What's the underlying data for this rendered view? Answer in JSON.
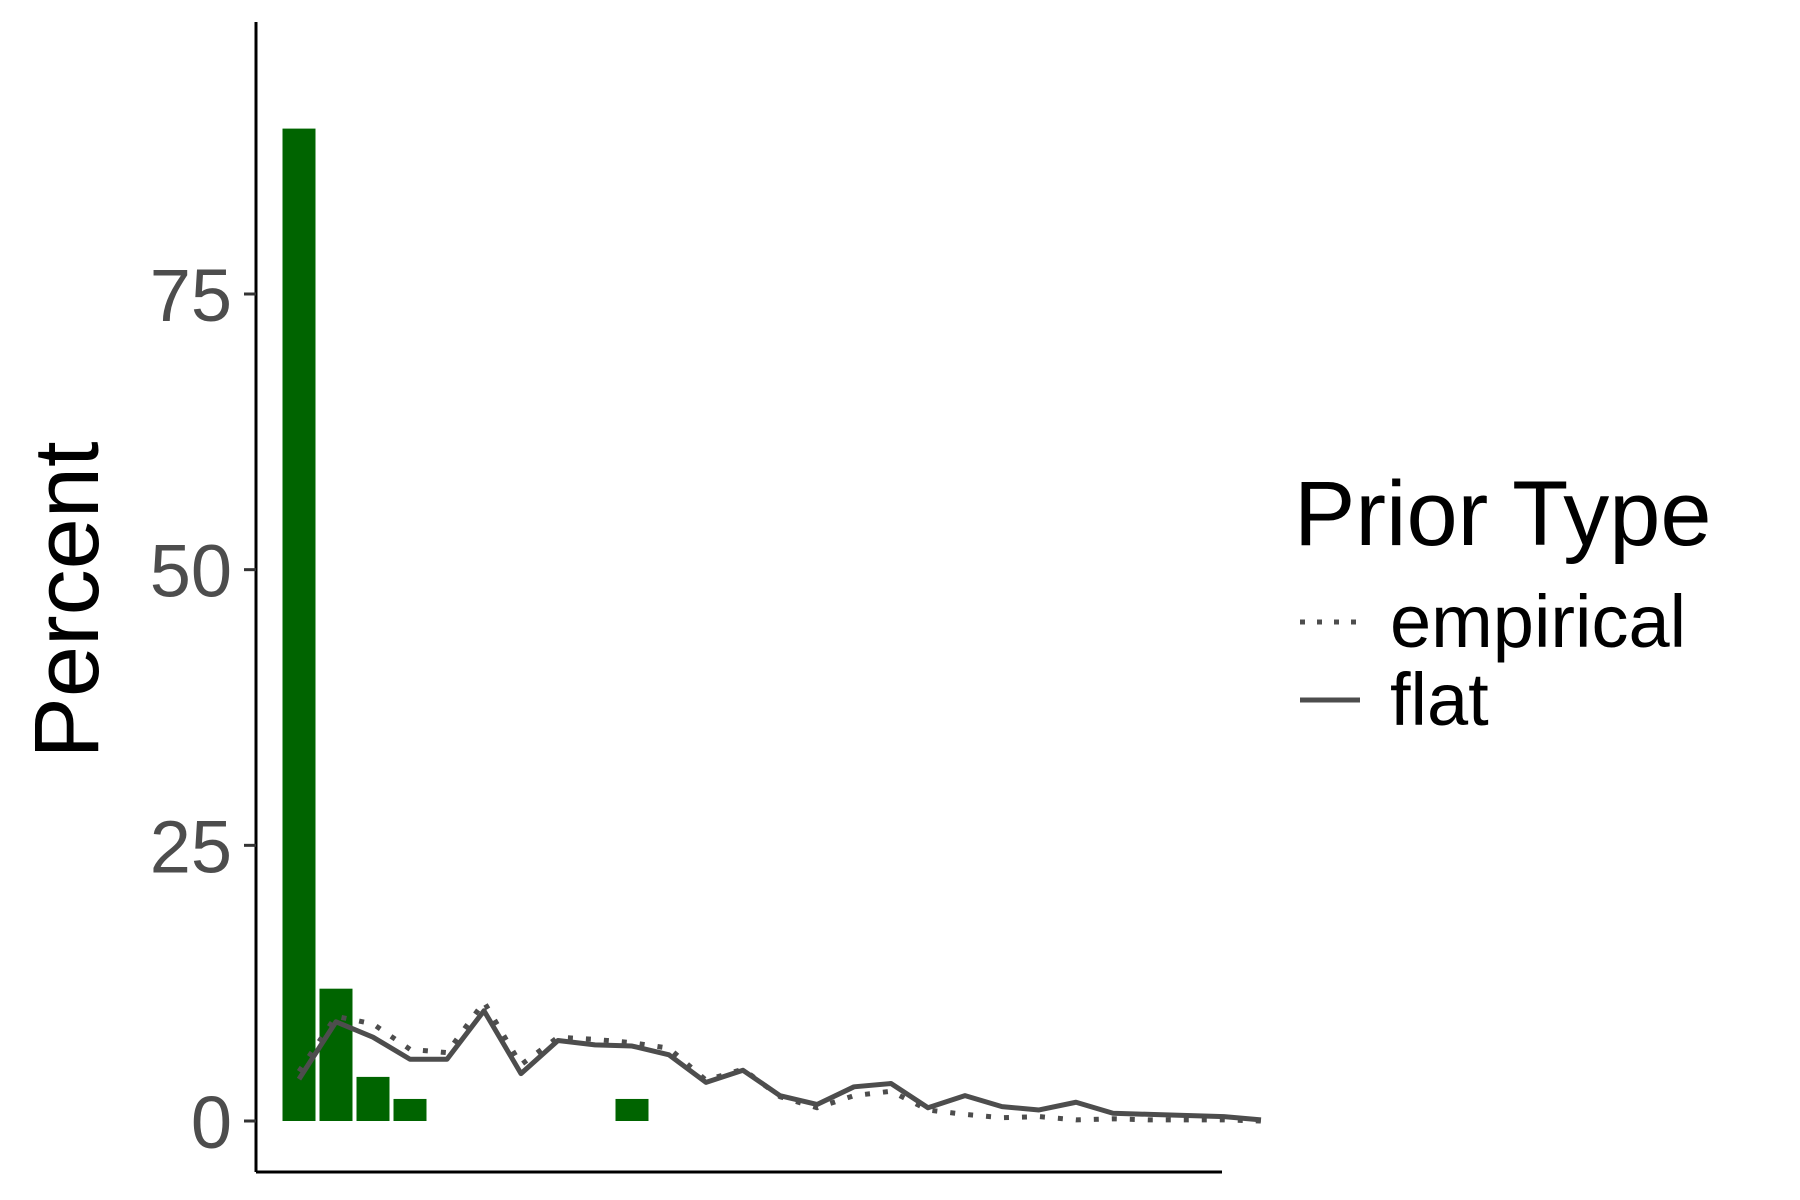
{
  "chart_data": {
    "type": "bar",
    "title": "",
    "xlabel": "",
    "ylabel": "Percent",
    "ylim": [
      -4.5,
      100
    ],
    "yticks": [
      0,
      25,
      50,
      75
    ],
    "grid": false,
    "legend": {
      "title": "Prior Type",
      "placement": "right",
      "entries": [
        {
          "label": "empirical",
          "linetype": "dotted"
        },
        {
          "label": "flat",
          "linetype": "solid"
        }
      ]
    },
    "bars": {
      "color": "#006400",
      "x": [
        1,
        2,
        3,
        4,
        10
      ],
      "values": [
        90,
        12,
        4,
        2,
        2
      ]
    },
    "series": [
      {
        "name": "empirical",
        "linetype": "dotted",
        "color": "#4d4d4d",
        "x": [
          1,
          2,
          3,
          4,
          5,
          6,
          7,
          8,
          9,
          10,
          11,
          12,
          13,
          14,
          15,
          16,
          17,
          18,
          19,
          20,
          21,
          22,
          23,
          24,
          25,
          26,
          27
        ],
        "values": [
          4.5,
          9.5,
          8.8,
          6.5,
          6.2,
          10.8,
          5.1,
          7.6,
          7.4,
          7.1,
          6.6,
          3.7,
          4.7,
          2.2,
          1.2,
          2.3,
          2.7,
          1.0,
          0.6,
          0.3,
          0.4,
          0.1,
          0.2,
          0.1,
          0.1,
          0.1,
          0.0
        ]
      },
      {
        "name": "flat",
        "linetype": "solid",
        "color": "#4d4d4d",
        "x": [
          1,
          2,
          3,
          4,
          5,
          6,
          7,
          8,
          9,
          10,
          11,
          12,
          13,
          14,
          15,
          16,
          17,
          18,
          19,
          20,
          21,
          22,
          23,
          24,
          25,
          26,
          27
        ],
        "values": [
          3.8,
          9.0,
          7.6,
          5.6,
          5.6,
          10.0,
          4.3,
          7.3,
          6.9,
          6.8,
          6.0,
          3.5,
          4.6,
          2.3,
          1.5,
          3.1,
          3.4,
          1.2,
          2.3,
          1.3,
          1.0,
          1.7,
          0.7,
          0.6,
          0.5,
          0.4,
          0.1
        ]
      }
    ]
  }
}
